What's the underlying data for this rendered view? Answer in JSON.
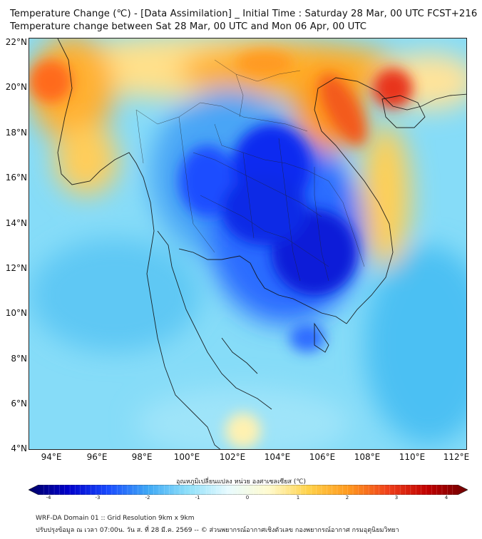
{
  "title_line1": "Temperature Change (℃) - [Data Assimilation] _ Initial Time : Saturday 28 Mar, 00 UTC FCST+216",
  "title_line2": "Temperature change between Sat 28 Mar, 00 UTC and Mon 06 Apr, 00 UTC",
  "lat_labels": [
    "22°N",
    "20°N",
    "18°N",
    "16°N",
    "14°N",
    "12°N",
    "10°N",
    "8°N",
    "6°N",
    "4°N"
  ],
  "lon_labels": [
    "94°E",
    "96°E",
    "98°E",
    "100°E",
    "102°E",
    "104°E",
    "106°E",
    "108°E",
    "110°E",
    "112°E"
  ],
  "colorbar": {
    "title": "อุณหภูมิเปลี่ยนแปลง หน่วย องศาเซลเซียส (℃)",
    "ticks": [
      "-4",
      "-3",
      "-2",
      "-1",
      "0",
      "1",
      "2",
      "3",
      "4"
    ],
    "colors": [
      "#000066",
      "#0000cc",
      "#1a4cff",
      "#3fa9f5",
      "#8fe0fa",
      "#e8fbff",
      "#fffbd0",
      "#ffd24a",
      "#ff9a1f",
      "#f0401a",
      "#c00000",
      "#6e0000"
    ]
  },
  "footer_line1": "WRF-DA Domain 01 :: Grid Resolution 9km x 9km",
  "footer_line2": "ปรับปรุงข้อมูล ณ เวลา 07:00น. วัน ส. ที่ 28 มี.ค. 2569 -- © ส่วนพยากรณ์อากาศเชิงตัวเลข กองพยากรณ์อากาศ กรมอุตุนิยมวิทยา"
}
